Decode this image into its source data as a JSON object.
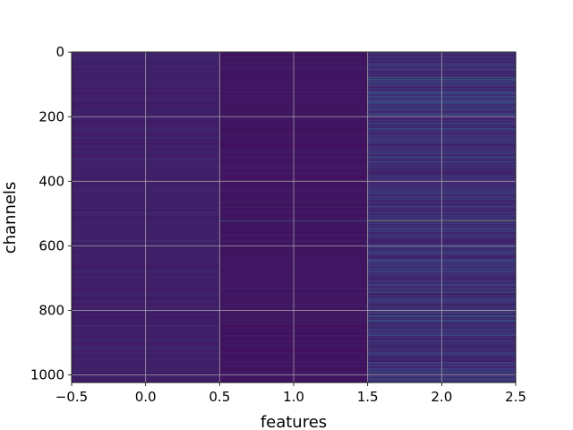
{
  "chart_data": {
    "type": "heatmap",
    "title": "",
    "xlabel": "features",
    "ylabel": "channels",
    "xlim": [
      -0.5,
      2.5
    ],
    "ylim": [
      1023.5,
      -0.5
    ],
    "x_ticks": [
      "−0.5",
      "0.0",
      "0.5",
      "1.0",
      "1.5",
      "2.0",
      "2.5"
    ],
    "x_tick_values": [
      -0.5,
      0.0,
      0.5,
      1.0,
      1.5,
      2.0,
      2.5
    ],
    "y_ticks": [
      "0",
      "200",
      "400",
      "600",
      "800",
      "1000"
    ],
    "y_tick_values": [
      0,
      200,
      400,
      600,
      800,
      1000
    ],
    "grid": true,
    "colormap": "viridis",
    "features": [
      0,
      1,
      2
    ],
    "n_channels": 1024,
    "column_profiles": [
      {
        "feature": 0,
        "background": 0.08,
        "highlights": [
          {
            "channel": 25,
            "value": 0.18
          },
          {
            "channel": 60,
            "value": 0.15
          },
          {
            "channel": 150,
            "value": 0.17
          },
          {
            "channel": 265,
            "value": 0.16
          },
          {
            "channel": 330,
            "value": 0.22
          },
          {
            "channel": 585,
            "value": 0.32
          },
          {
            "channel": 600,
            "value": 0.2
          },
          {
            "channel": 655,
            "value": 0.16
          },
          {
            "channel": 800,
            "value": 0.19
          },
          {
            "channel": 915,
            "value": 0.22
          },
          {
            "channel": 985,
            "value": 0.18
          }
        ]
      },
      {
        "feature": 1,
        "background": 0.05,
        "highlights": [
          {
            "channel": 480,
            "value": 0.15
          },
          {
            "channel": 523,
            "value": 0.45
          },
          {
            "channel": 700,
            "value": 0.12
          },
          {
            "channel": 880,
            "value": 0.12
          }
        ]
      },
      {
        "feature": 2,
        "background": 0.1,
        "highlights": [
          {
            "channel": 85,
            "value": 0.55
          },
          {
            "channel": 95,
            "value": 0.5
          },
          {
            "channel": 160,
            "value": 0.45
          },
          {
            "channel": 175,
            "value": 0.4
          },
          {
            "channel": 325,
            "value": 0.5
          },
          {
            "channel": 435,
            "value": 0.4
          },
          {
            "channel": 523,
            "value": 0.95
          },
          {
            "channel": 620,
            "value": 0.4
          },
          {
            "channel": 745,
            "value": 0.4
          },
          {
            "channel": 820,
            "value": 0.5
          },
          {
            "channel": 830,
            "value": 0.45
          },
          {
            "channel": 995,
            "value": 0.5
          }
        ]
      }
    ]
  }
}
